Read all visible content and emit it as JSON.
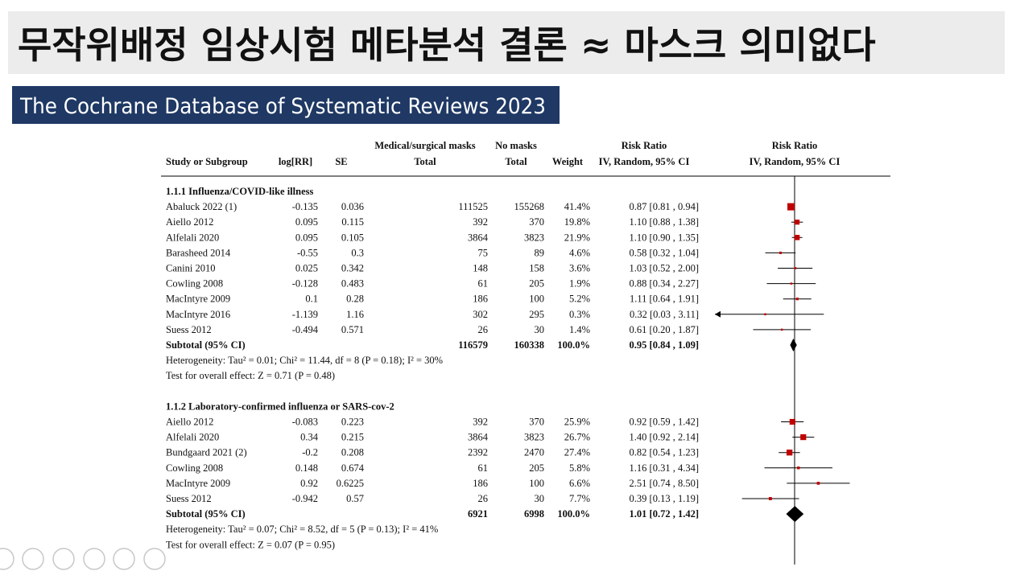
{
  "title": "무작위배정 임상시험 메타분석 결론 ≈ 마스크 의미없다",
  "subtitle": "The Cochrane Database of Systematic Reviews 2023",
  "table": {
    "header": {
      "study": "Study or Subgroup",
      "logrr": "log[RR]",
      "se": "SE",
      "exp_group": "Medical/surgical masks",
      "exp_total": "Total",
      "ctl_group": "No masks",
      "ctl_total": "Total",
      "weight": "Weight",
      "ci_group": "Risk Ratio",
      "ci_method": "IV, Random, 95% CI",
      "plot_group": "Risk Ratio",
      "plot_method": "IV, Random, 95% CI"
    },
    "groups": [
      {
        "heading": "1.1.1 Influenza/COVID-like illness",
        "studies": [
          {
            "name": "Abaluck 2022 (1)",
            "logrr": -0.135,
            "se": 0.036,
            "exp": 111525,
            "ctl": 155268,
            "weight": {
              "value": 41.4,
              "label": "41.4%"
            },
            "ci": {
              "rr": 0.87,
              "lo": 0.81,
              "hi": 0.94,
              "label": "0.87 [0.81 , 0.94]"
            }
          },
          {
            "name": "Aiello 2012",
            "logrr": 0.095,
            "se": 0.115,
            "exp": 392,
            "ctl": 370,
            "weight": {
              "value": 19.8,
              "label": "19.8%"
            },
            "ci": {
              "rr": 1.1,
              "lo": 0.88,
              "hi": 1.38,
              "label": "1.10 [0.88 , 1.38]"
            }
          },
          {
            "name": "Alfelali 2020",
            "logrr": 0.095,
            "se": 0.105,
            "exp": 3864,
            "ctl": 3823,
            "weight": {
              "value": 21.9,
              "label": "21.9%"
            },
            "ci": {
              "rr": 1.1,
              "lo": 0.9,
              "hi": 1.35,
              "label": "1.10 [0.90 , 1.35]"
            }
          },
          {
            "name": "Barasheed 2014",
            "logrr": -0.55,
            "se": 0.3,
            "exp": 75,
            "ctl": 89,
            "weight": {
              "value": 4.6,
              "label": "4.6%"
            },
            "ci": {
              "rr": 0.58,
              "lo": 0.32,
              "hi": 1.04,
              "label": "0.58 [0.32 , 1.04]"
            }
          },
          {
            "name": "Canini 2010",
            "logrr": 0.025,
            "se": 0.342,
            "exp": 148,
            "ctl": 158,
            "weight": {
              "value": 3.6,
              "label": "3.6%"
            },
            "ci": {
              "rr": 1.03,
              "lo": 0.52,
              "hi": 2.0,
              "label": "1.03 [0.52 , 2.00]"
            }
          },
          {
            "name": "Cowling 2008",
            "logrr": -0.128,
            "se": 0.483,
            "exp": 61,
            "ctl": 205,
            "weight": {
              "value": 1.9,
              "label": "1.9%"
            },
            "ci": {
              "rr": 0.88,
              "lo": 0.34,
              "hi": 2.27,
              "label": "0.88 [0.34 , 2.27]"
            }
          },
          {
            "name": "MacIntyre 2009",
            "logrr": 0.1,
            "se": 0.28,
            "exp": 186,
            "ctl": 100,
            "weight": {
              "value": 5.2,
              "label": "5.2%"
            },
            "ci": {
              "rr": 1.11,
              "lo": 0.64,
              "hi": 1.91,
              "label": "1.11 [0.64 , 1.91]"
            }
          },
          {
            "name": "MacIntyre 2016",
            "logrr": -1.139,
            "se": 1.16,
            "exp": 302,
            "ctl": 295,
            "weight": {
              "value": 0.3,
              "label": "0.3%"
            },
            "ci": {
              "rr": 0.32,
              "lo": 0.03,
              "hi": 3.11,
              "label": "0.32 [0.03 , 3.11]"
            }
          },
          {
            "name": "Suess 2012",
            "logrr": -0.494,
            "se": 0.571,
            "exp": 26,
            "ctl": 30,
            "weight": {
              "value": 1.4,
              "label": "1.4%"
            },
            "ci": {
              "rr": 0.61,
              "lo": 0.2,
              "hi": 1.87,
              "label": "0.61 [0.20 , 1.87]"
            }
          }
        ],
        "subtotal": {
          "name": "Subtotal (95% CI)",
          "exp": 116579,
          "ctl": 160338,
          "weight": {
            "value": 100.0,
            "label": "100.0%"
          },
          "ci": {
            "rr": 0.95,
            "lo": 0.84,
            "hi": 1.09,
            "label": "0.95 [0.84 , 1.09]"
          }
        },
        "heterogeneity": "Heterogeneity: Tau² = 0.01; Chi² = 11.44, df = 8 (P = 0.18); I² = 30%",
        "overall": "Test for overall effect: Z = 0.71 (P = 0.48)"
      },
      {
        "heading": "1.1.2 Laboratory-confirmed influenza or SARS-cov-2",
        "studies": [
          {
            "name": "Aiello 2012",
            "logrr": -0.083,
            "se": 0.223,
            "exp": 392,
            "ctl": 370,
            "weight": {
              "value": 25.9,
              "label": "25.9%"
            },
            "ci": {
              "rr": 0.92,
              "lo": 0.59,
              "hi": 1.42,
              "label": "0.92 [0.59 , 1.42]"
            }
          },
          {
            "name": "Alfelali 2020",
            "logrr": 0.34,
            "se": 0.215,
            "exp": 3864,
            "ctl": 3823,
            "weight": {
              "value": 26.7,
              "label": "26.7%"
            },
            "ci": {
              "rr": 1.4,
              "lo": 0.92,
              "hi": 2.14,
              "label": "1.40 [0.92 , 2.14]"
            }
          },
          {
            "name": "Bundgaard 2021 (2)",
            "logrr": -0.2,
            "se": 0.208,
            "exp": 2392,
            "ctl": 2470,
            "weight": {
              "value": 27.4,
              "label": "27.4%"
            },
            "ci": {
              "rr": 0.82,
              "lo": 0.54,
              "hi": 1.23,
              "label": "0.82 [0.54 , 1.23]"
            }
          },
          {
            "name": "Cowling 2008",
            "logrr": 0.148,
            "se": 0.674,
            "exp": 61,
            "ctl": 205,
            "weight": {
              "value": 5.8,
              "label": "5.8%"
            },
            "ci": {
              "rr": 1.16,
              "lo": 0.31,
              "hi": 4.34,
              "label": "1.16 [0.31 , 4.34]"
            }
          },
          {
            "name": "MacIntyre 2009",
            "logrr": 0.92,
            "se": 0.6225,
            "exp": 186,
            "ctl": 100,
            "weight": {
              "value": 6.6,
              "label": "6.6%"
            },
            "ci": {
              "rr": 2.51,
              "lo": 0.74,
              "hi": 8.5,
              "label": "2.51 [0.74 , 8.50]"
            }
          },
          {
            "name": "Suess 2012",
            "logrr": -0.942,
            "se": 0.57,
            "exp": 26,
            "ctl": 30,
            "weight": {
              "value": 7.7,
              "label": "7.7%"
            },
            "ci": {
              "rr": 0.39,
              "lo": 0.13,
              "hi": 1.19,
              "label": "0.39 [0.13 , 1.19]"
            }
          }
        ],
        "subtotal": {
          "name": "Subtotal (95% CI)",
          "exp": 6921,
          "ctl": 6998,
          "weight": {
            "value": 100.0,
            "label": "100.0%"
          },
          "ci": {
            "rr": 1.01,
            "lo": 0.72,
            "hi": 1.42,
            "label": "1.01 [0.72 , 1.42]"
          }
        },
        "heterogeneity": "Heterogeneity: Tau² = 0.07; Chi² = 8.52, df = 5 (P = 0.13); I² = 41%",
        "overall": "Test for overall effect: Z = 0.07 (P = 0.95)"
      }
    ]
  }
}
